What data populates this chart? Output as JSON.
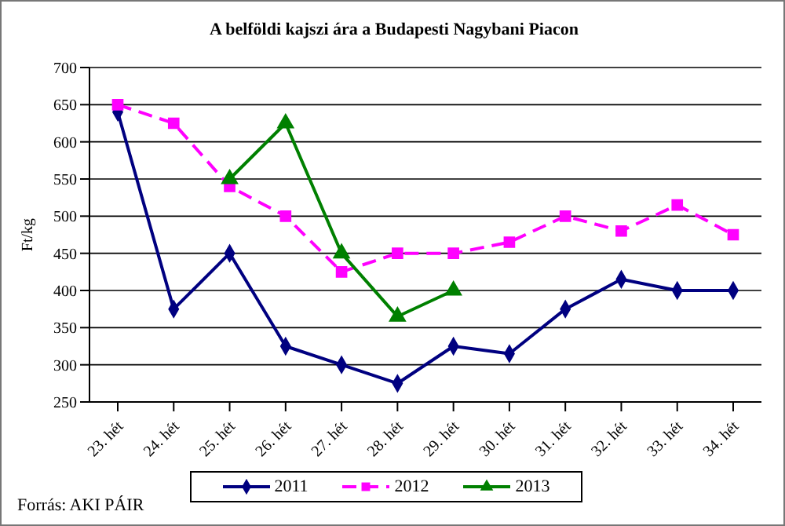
{
  "chart_data": {
    "type": "line",
    "title": "A belföldi kajszi ára a Budapesti Nagybani Piacon",
    "ylabel": "Ft/kg",
    "categories": [
      "23. hét",
      "24. hét",
      "25. hét",
      "26. hét",
      "27. hét",
      "28. hét",
      "29. hét",
      "30. hét",
      "31. hét",
      "32. hét",
      "33. hét",
      "34. hét"
    ],
    "series": [
      {
        "name": "2011",
        "color": "#000080",
        "marker": "diamond",
        "line_style": "solid",
        "values": [
          640,
          375,
          450,
          325,
          300,
          275,
          325,
          315,
          375,
          415,
          400,
          400
        ]
      },
      {
        "name": "2012",
        "color": "#ff00ff",
        "marker": "square",
        "line_style": "dashed",
        "values": [
          650,
          625,
          540,
          500,
          425,
          450,
          450,
          465,
          500,
          480,
          515,
          475
        ]
      },
      {
        "name": "2013",
        "color": "#008000",
        "marker": "triangle",
        "line_style": "solid",
        "values": [
          null,
          null,
          550,
          625,
          450,
          365,
          400,
          null,
          null,
          null,
          null,
          null
        ]
      }
    ],
    "ylim": [
      250,
      700
    ],
    "yticks": [
      250,
      300,
      350,
      400,
      450,
      500,
      550,
      600,
      650,
      700
    ],
    "grid": "y",
    "legend": "bottom",
    "annotations": [
      "Forrás: AKI PÁIR"
    ]
  }
}
